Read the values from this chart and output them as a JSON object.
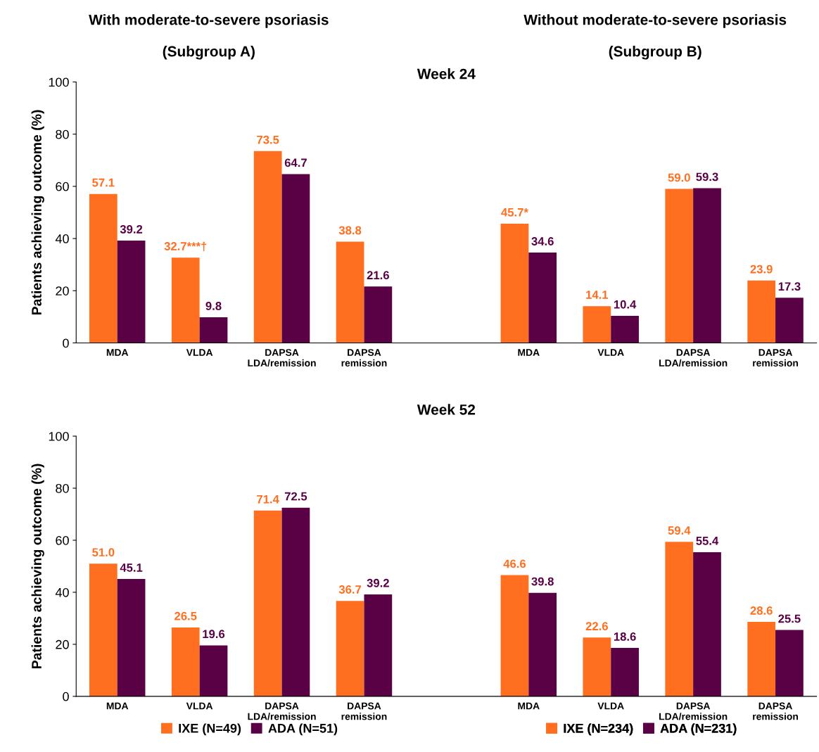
{
  "chart_data": [
    {
      "type": "bar",
      "title": "Week 24",
      "ylabel": "Patients achieving outcome (%)",
      "categories": [
        "MDA",
        "VLDA",
        "DAPSA\nLDA/remission",
        "DAPSA\nremission",
        null,
        "MDA",
        "VLDA",
        "DAPSA\nLDA/remission",
        "DAPSA\nremission"
      ],
      "series": [
        {
          "color": "#ff6f1f",
          "values": [
            57.1,
            32.7,
            73.5,
            38.8,
            null,
            null,
            null,
            null,
            null
          ],
          "value_labels": [
            "57.1",
            "32.7***†",
            "73.5",
            "38.8",
            null,
            null,
            null,
            null,
            null
          ]
        },
        {
          "color": "#5a0045",
          "values": [
            39.2,
            9.8,
            64.7,
            21.6,
            null,
            null,
            null,
            null,
            null
          ],
          "value_labels": [
            "39.2",
            "9.8",
            "64.7",
            "21.6",
            null,
            null,
            null,
            null,
            null
          ]
        },
        {
          "color": "#ff6f1f",
          "values": [
            null,
            null,
            null,
            null,
            null,
            45.7,
            14.1,
            59.0,
            23.9
          ],
          "value_labels": [
            null,
            null,
            null,
            null,
            null,
            "45.7*",
            "14.1",
            "59.0",
            "23.9"
          ]
        },
        {
          "color": "#5a0045",
          "values": [
            null,
            null,
            null,
            null,
            null,
            34.6,
            10.4,
            59.3,
            17.3
          ],
          "value_labels": [
            null,
            null,
            null,
            null,
            null,
            "34.6",
            "10.4",
            "59.3",
            "17.3"
          ]
        }
      ],
      "ylim": [
        0,
        100
      ],
      "yticks": [
        0,
        20,
        40,
        60,
        80,
        100
      ],
      "grid": false,
      "legend": false,
      "annotations": [
        "With moderate-to-severe psoriasis",
        "(Subgroup A)",
        "Without moderate-to-severe psoriasis",
        "(Subgroup B)"
      ]
    },
    {
      "type": "bar",
      "title": "Week 52",
      "ylabel": "Patients achieving outcome (%)",
      "categories": [
        "MDA",
        "VLDA",
        "DAPSA\nLDA/remission",
        "DAPSA\nremission",
        null,
        "MDA",
        "VLDA",
        "DAPSA\nLDA/remission",
        "DAPSA\nremission"
      ],
      "series": [
        {
          "name": "IXE (N=49)",
          "color": "#ff6f1f",
          "values": [
            51.0,
            26.5,
            71.4,
            36.7,
            null,
            null,
            null,
            null,
            null
          ],
          "value_labels": [
            "51.0",
            "26.5",
            "71.4",
            "36.7",
            null,
            null,
            null,
            null,
            null
          ]
        },
        {
          "name": "ADA (N=51)",
          "color": "#5a0045",
          "values": [
            45.1,
            19.6,
            72.5,
            39.2,
            null,
            null,
            null,
            null,
            null
          ],
          "value_labels": [
            "45.1",
            "19.6",
            "72.5",
            "39.2",
            null,
            null,
            null,
            null,
            null
          ]
        },
        {
          "name": "IXE (N=234)",
          "color": "#ff6f1f",
          "values": [
            null,
            null,
            null,
            null,
            null,
            46.6,
            22.6,
            59.4,
            28.6
          ],
          "value_labels": [
            null,
            null,
            null,
            null,
            null,
            "46.6",
            "22.6",
            "59.4",
            "28.6"
          ]
        },
        {
          "name": "ADA (N=231)",
          "color": "#5a0045",
          "values": [
            null,
            null,
            null,
            null,
            null,
            39.8,
            18.6,
            55.4,
            25.5
          ],
          "value_labels": [
            null,
            null,
            null,
            null,
            null,
            "39.8",
            "18.6",
            "55.4",
            "25.5"
          ]
        }
      ],
      "ylim": [
        0,
        100
      ],
      "yticks": [
        0,
        20,
        40,
        60,
        80,
        100
      ],
      "grid": false,
      "legend": "bottom"
    }
  ]
}
